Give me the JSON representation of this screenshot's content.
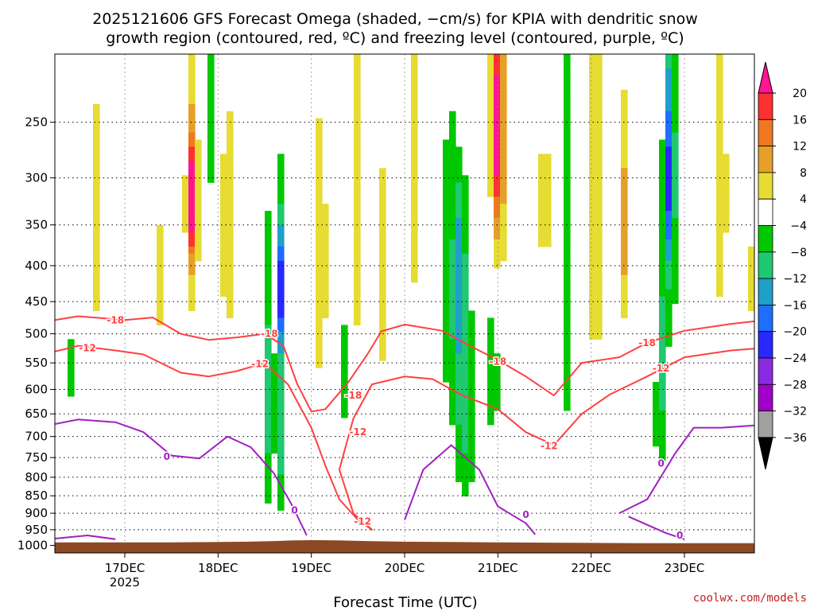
{
  "chart_data": {
    "type": "heatmap",
    "title_line1": "2025121606 GFS Forecast Omega (shaded, −cm/s) for KPIA with dendritic snow",
    "title_line2": "growth region (contoured, red, ºC) and freezing level (contoured, purple, ºC)",
    "xlabel": "Forecast Time (UTC)",
    "ylabel": "",
    "credit": "coolwx.com/models",
    "x_range_days": [
      16.25,
      23.75
    ],
    "y_range_hpa": [
      1025,
      200
    ],
    "y_ticks": [
      250,
      300,
      350,
      400,
      450,
      500,
      550,
      600,
      650,
      700,
      750,
      800,
      850,
      900,
      950,
      1000
    ],
    "x_ticks": [
      {
        "day": 17,
        "label": "17DEC",
        "sub": "2025"
      },
      {
        "day": 18,
        "label": "18DEC",
        "sub": ""
      },
      {
        "day": 19,
        "label": "19DEC",
        "sub": ""
      },
      {
        "day": 20,
        "label": "20DEC",
        "sub": ""
      },
      {
        "day": 21,
        "label": "21DEC",
        "sub": ""
      },
      {
        "day": 22,
        "label": "22DEC",
        "sub": ""
      },
      {
        "day": 23,
        "label": "23DEC",
        "sub": ""
      }
    ],
    "colorbar": {
      "labels": [
        "20",
        "16",
        "12",
        "8",
        "4",
        "−4",
        "−8",
        "−12",
        "−16",
        "−20",
        "−24",
        "−28",
        "−32",
        "−36"
      ],
      "colors": [
        "#ff1493",
        "#ff3030",
        "#f0781e",
        "#e6a028",
        "#e6dc32",
        "#ffffff",
        "#00c800",
        "#20c870",
        "#20a0c8",
        "#1e6eff",
        "#2828ff",
        "#8a2be2",
        "#a000c8",
        "#a0a0a0",
        "#000000"
      ]
    },
    "colors": {
      "surface": "#8b4a24",
      "dgz_line": "#ff4040",
      "freezing_line": "#a020c0",
      "grid": "#000000"
    },
    "contour_labels": {
      "minus18": "-18",
      "minus12": "-12",
      "zero": "0"
    },
    "surface_hpa": [
      990,
      990,
      990,
      990,
      989,
      988,
      986,
      984,
      983,
      984,
      986,
      988,
      989,
      990,
      991,
      992,
      993,
      993,
      993,
      993
    ],
    "surface_days": [
      16.25,
      16.5,
      17.0,
      17.5,
      18.0,
      18.3,
      18.6,
      18.8,
      19.0,
      19.3,
      19.6,
      20.0,
      20.5,
      21.0,
      21.5,
      22.0,
      22.5,
      23.0,
      23.5,
      23.75
    ],
    "contours": {
      "minus18": [
        {
          "day": 16.25,
          "hpa": 478
        },
        {
          "day": 16.5,
          "hpa": 472
        },
        {
          "day": 17.0,
          "hpa": 478
        },
        {
          "day": 17.3,
          "hpa": 474
        },
        {
          "day": 17.6,
          "hpa": 500
        },
        {
          "day": 17.9,
          "hpa": 510
        },
        {
          "day": 18.2,
          "hpa": 506
        },
        {
          "day": 18.5,
          "hpa": 500
        },
        {
          "day": 18.7,
          "hpa": 520
        },
        {
          "day": 18.85,
          "hpa": 590
        },
        {
          "day": 19.0,
          "hpa": 645
        },
        {
          "day": 19.15,
          "hpa": 640
        },
        {
          "day": 19.4,
          "hpa": 585
        },
        {
          "day": 19.6,
          "hpa": 535
        },
        {
          "day": 19.75,
          "hpa": 496
        },
        {
          "day": 20.0,
          "hpa": 485
        },
        {
          "day": 20.4,
          "hpa": 495
        },
        {
          "day": 20.7,
          "hpa": 520
        },
        {
          "day": 21.0,
          "hpa": 545
        },
        {
          "day": 21.3,
          "hpa": 575
        },
        {
          "day": 21.6,
          "hpa": 612
        },
        {
          "day": 21.9,
          "hpa": 550
        },
        {
          "day": 22.3,
          "hpa": 540
        },
        {
          "day": 22.6,
          "hpa": 515
        },
        {
          "day": 23.0,
          "hpa": 495
        },
        {
          "day": 23.5,
          "hpa": 484
        },
        {
          "day": 23.75,
          "hpa": 480
        }
      ],
      "minus12": [
        {
          "day": 16.25,
          "hpa": 530
        },
        {
          "day": 16.5,
          "hpa": 520
        },
        {
          "day": 16.9,
          "hpa": 528
        },
        {
          "day": 17.2,
          "hpa": 535
        },
        {
          "day": 17.6,
          "hpa": 568
        },
        {
          "day": 17.9,
          "hpa": 575
        },
        {
          "day": 18.2,
          "hpa": 565
        },
        {
          "day": 18.5,
          "hpa": 550
        },
        {
          "day": 18.75,
          "hpa": 590
        },
        {
          "day": 19.0,
          "hpa": 680
        },
        {
          "day": 19.15,
          "hpa": 770
        },
        {
          "day": 19.3,
          "hpa": 860
        },
        {
          "day": 19.5,
          "hpa": 920
        },
        {
          "day": 19.65,
          "hpa": 950
        },
        {
          "day": 19.45,
          "hpa": 900
        },
        {
          "day": 19.3,
          "hpa": 780
        },
        {
          "day": 19.45,
          "hpa": 660
        },
        {
          "day": 19.65,
          "hpa": 590
        },
        {
          "day": 20.0,
          "hpa": 575
        },
        {
          "day": 20.3,
          "hpa": 580
        },
        {
          "day": 20.6,
          "hpa": 610
        },
        {
          "day": 21.0,
          "hpa": 640
        },
        {
          "day": 21.3,
          "hpa": 690
        },
        {
          "day": 21.6,
          "hpa": 720
        },
        {
          "day": 21.9,
          "hpa": 650
        },
        {
          "day": 22.2,
          "hpa": 610
        },
        {
          "day": 22.6,
          "hpa": 575
        },
        {
          "day": 23.0,
          "hpa": 540
        },
        {
          "day": 23.5,
          "hpa": 528
        },
        {
          "day": 23.75,
          "hpa": 525
        }
      ],
      "zero_a": [
        {
          "day": 16.25,
          "hpa": 672
        },
        {
          "day": 16.5,
          "hpa": 662
        },
        {
          "day": 16.9,
          "hpa": 668
        },
        {
          "day": 17.2,
          "hpa": 690
        },
        {
          "day": 17.5,
          "hpa": 745
        },
        {
          "day": 17.8,
          "hpa": 752
        },
        {
          "day": 18.1,
          "hpa": 700
        },
        {
          "day": 18.35,
          "hpa": 725
        },
        {
          "day": 18.6,
          "hpa": 790
        },
        {
          "day": 18.8,
          "hpa": 880
        },
        {
          "day": 18.95,
          "hpa": 968
        }
      ],
      "zero_b": [
        {
          "day": 20.0,
          "hpa": 920
        },
        {
          "day": 20.2,
          "hpa": 780
        },
        {
          "day": 20.5,
          "hpa": 720
        },
        {
          "day": 20.8,
          "hpa": 780
        },
        {
          "day": 21.0,
          "hpa": 880
        },
        {
          "day": 21.3,
          "hpa": 930
        },
        {
          "day": 21.4,
          "hpa": 965
        }
      ],
      "zero_c": [
        {
          "day": 16.25,
          "hpa": 978
        },
        {
          "day": 16.6,
          "hpa": 968
        },
        {
          "day": 16.9,
          "hpa": 980
        }
      ],
      "zero_d": [
        {
          "day": 22.3,
          "hpa": 900
        },
        {
          "day": 22.6,
          "hpa": 860
        },
        {
          "day": 22.9,
          "hpa": 740
        },
        {
          "day": 23.1,
          "hpa": 680
        },
        {
          "day": 23.4,
          "hpa": 680
        },
        {
          "day": 23.75,
          "hpa": 675
        }
      ],
      "zero_e": [
        {
          "day": 22.4,
          "hpa": 910
        },
        {
          "day": 22.8,
          "hpa": 960
        },
        {
          "day": 23.0,
          "hpa": 980
        }
      ]
    },
    "omega_blobs": [
      {
        "day": 17.72,
        "hpa": 330,
        "sigma_day": 0.05,
        "sigma_hpa": 90,
        "level": 12
      },
      {
        "day": 17.72,
        "hpa": 320,
        "sigma_day": 0.02,
        "sigma_hpa": 35,
        "level": 16
      },
      {
        "day": 17.4,
        "hpa": 420,
        "sigma_day": 0.04,
        "sigma_hpa": 110,
        "level": 6
      },
      {
        "day": 16.7,
        "hpa": 350,
        "sigma_day": 0.03,
        "sigma_hpa": 180,
        "level": 5
      },
      {
        "day": 18.1,
        "hpa": 360,
        "sigma_day": 0.06,
        "sigma_hpa": 150,
        "level": 6
      },
      {
        "day": 18.6,
        "hpa": 380,
        "sigma_day": 0.03,
        "sigma_hpa": 120,
        "level": 10
      },
      {
        "day": 18.62,
        "hpa": 430,
        "sigma_day": 0.05,
        "sigma_hpa": 200,
        "level": -8
      },
      {
        "day": 18.66,
        "hpa": 430,
        "sigma_day": 0.015,
        "sigma_hpa": 60,
        "level": -22
      },
      {
        "day": 18.65,
        "hpa": 700,
        "sigma_day": 0.012,
        "sigma_hpa": 150,
        "level": -36
      },
      {
        "day": 18.55,
        "hpa": 620,
        "sigma_day": 0.03,
        "sigma_hpa": 200,
        "level": -10
      },
      {
        "day": 19.1,
        "hpa": 400,
        "sigma_day": 0.05,
        "sigma_hpa": 160,
        "level": 7
      },
      {
        "day": 19.5,
        "hpa": 320,
        "sigma_day": 0.05,
        "sigma_hpa": 160,
        "level": 7
      },
      {
        "day": 19.35,
        "hpa": 570,
        "sigma_day": 0.02,
        "sigma_hpa": 80,
        "level": -7
      },
      {
        "day": 20.1,
        "hpa": 300,
        "sigma_day": 0.06,
        "sigma_hpa": 140,
        "level": 6
      },
      {
        "day": 20.5,
        "hpa": 420,
        "sigma_day": 0.1,
        "sigma_hpa": 150,
        "level": -8
      },
      {
        "day": 20.6,
        "hpa": 320,
        "sigma_day": 0.03,
        "sigma_hpa": 140,
        "level": -12
      },
      {
        "day": 20.62,
        "hpa": 360,
        "sigma_day": 0.01,
        "sigma_hpa": 60,
        "level": -24
      },
      {
        "day": 20.65,
        "hpa": 650,
        "sigma_day": 0.08,
        "sigma_hpa": 160,
        "level": -9
      },
      {
        "day": 20.6,
        "hpa": 220,
        "sigma_day": 0.03,
        "sigma_hpa": 80,
        "level": 14
      },
      {
        "day": 21.0,
        "hpa": 260,
        "sigma_day": 0.04,
        "sigma_hpa": 60,
        "level": 16
      },
      {
        "day": 21.0,
        "hpa": 240,
        "sigma_day": 0.06,
        "sigma_hpa": 150,
        "level": 9
      },
      {
        "day": 21.5,
        "hpa": 330,
        "sigma_day": 0.04,
        "sigma_hpa": 170,
        "level": 6
      },
      {
        "day": 21.75,
        "hpa": 420,
        "sigma_day": 0.04,
        "sigma_hpa": 200,
        "level": -8
      },
      {
        "day": 22.05,
        "hpa": 300,
        "sigma_day": 0.1,
        "sigma_hpa": 250,
        "level": 6
      },
      {
        "day": 22.35,
        "hpa": 350,
        "sigma_day": 0.03,
        "sigma_hpa": 90,
        "level": 10
      },
      {
        "day": 22.85,
        "hpa": 300,
        "sigma_day": 0.05,
        "sigma_hpa": 130,
        "level": -12
      },
      {
        "day": 22.85,
        "hpa": 300,
        "sigma_day": 0.02,
        "sigma_hpa": 60,
        "level": -17
      },
      {
        "day": 22.75,
        "hpa": 560,
        "sigma_day": 0.04,
        "sigma_hpa": 160,
        "level": -9
      },
      {
        "day": 22.72,
        "hpa": 680,
        "sigma_day": 0.015,
        "sigma_hpa": 60,
        "level": -13
      },
      {
        "day": 23.4,
        "hpa": 320,
        "sigma_day": 0.05,
        "sigma_hpa": 160,
        "level": 6
      },
      {
        "day": 23.7,
        "hpa": 420,
        "sigma_day": 0.02,
        "sigma_hpa": 100,
        "level": 6
      },
      {
        "day": 16.45,
        "hpa": 560,
        "sigma_day": 0.03,
        "sigma_hpa": 120,
        "level": -7
      },
      {
        "day": 19.75,
        "hpa": 420,
        "sigma_day": 0.05,
        "sigma_hpa": 150,
        "level": 6
      },
      {
        "day": 20.95,
        "hpa": 560,
        "sigma_day": 0.04,
        "sigma_hpa": 110,
        "level": -9
      },
      {
        "day": 17.95,
        "hpa": 240,
        "sigma_day": 0.03,
        "sigma_hpa": 80,
        "level": -9
      }
    ]
  }
}
